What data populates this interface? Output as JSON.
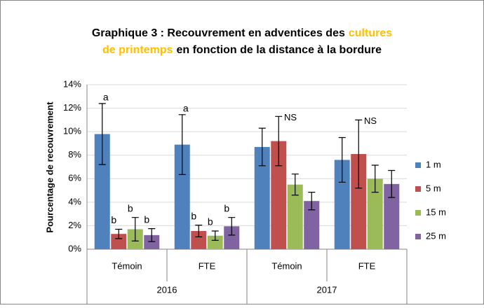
{
  "chart_data": {
    "type": "bar",
    "title_lines": [
      [
        {
          "text": "Graphique 3 : Recouvrement en adventices des",
          "color": "#000000"
        },
        {
          "text": "cultures",
          "color": "#ffc000"
        }
      ],
      [
        {
          "text": "de printemps",
          "color": "#ffc000"
        },
        {
          "text": "en fonction de la distance à la bordure",
          "color": "#000000"
        }
      ]
    ],
    "ylabel": "Pourcentage de recouvrement",
    "categories": [
      "Témoin",
      "FTE",
      "Témoin",
      "FTE"
    ],
    "group_labels": [
      "2016",
      "2017"
    ],
    "series": [
      {
        "name": "1 m",
        "color": "#4f81bd",
        "values": [
          9.8,
          8.9,
          8.7,
          7.6
        ],
        "errors": [
          2.6,
          2.55,
          1.6,
          1.9
        ],
        "letters": [
          "a",
          "a",
          null,
          null
        ]
      },
      {
        "name": "5 m",
        "color": "#c0504d",
        "values": [
          1.3,
          1.55,
          9.2,
          8.1
        ],
        "errors": [
          0.4,
          0.5,
          2.1,
          2.9
        ],
        "letters": [
          "b",
          "b",
          null,
          null
        ]
      },
      {
        "name": "15 m",
        "color": "#9bbb59",
        "values": [
          1.7,
          1.15,
          5.5,
          6.0
        ],
        "errors": [
          1.0,
          0.4,
          0.9,
          1.15
        ],
        "letters": [
          "b",
          "b",
          null,
          null
        ]
      },
      {
        "name": "25 m",
        "color": "#8064a2",
        "values": [
          1.2,
          1.95,
          4.1,
          5.55
        ],
        "errors": [
          0.55,
          0.75,
          0.75,
          1.15
        ],
        "letters": [
          "b",
          "b",
          null,
          null
        ]
      }
    ],
    "group_notes": [
      null,
      null,
      "NS",
      "NS"
    ],
    "ylim": [
      0,
      14
    ],
    "yticks": [
      {
        "value": 0,
        "label": "0%"
      },
      {
        "value": 2,
        "label": "2%"
      },
      {
        "value": 4,
        "label": "4%"
      },
      {
        "value": 6,
        "label": "6%"
      },
      {
        "value": 8,
        "label": "8%"
      },
      {
        "value": 10,
        "label": "10%"
      },
      {
        "value": 12,
        "label": "12%"
      },
      {
        "value": 14,
        "label": "14%"
      }
    ],
    "grid": true,
    "legend": "right"
  }
}
